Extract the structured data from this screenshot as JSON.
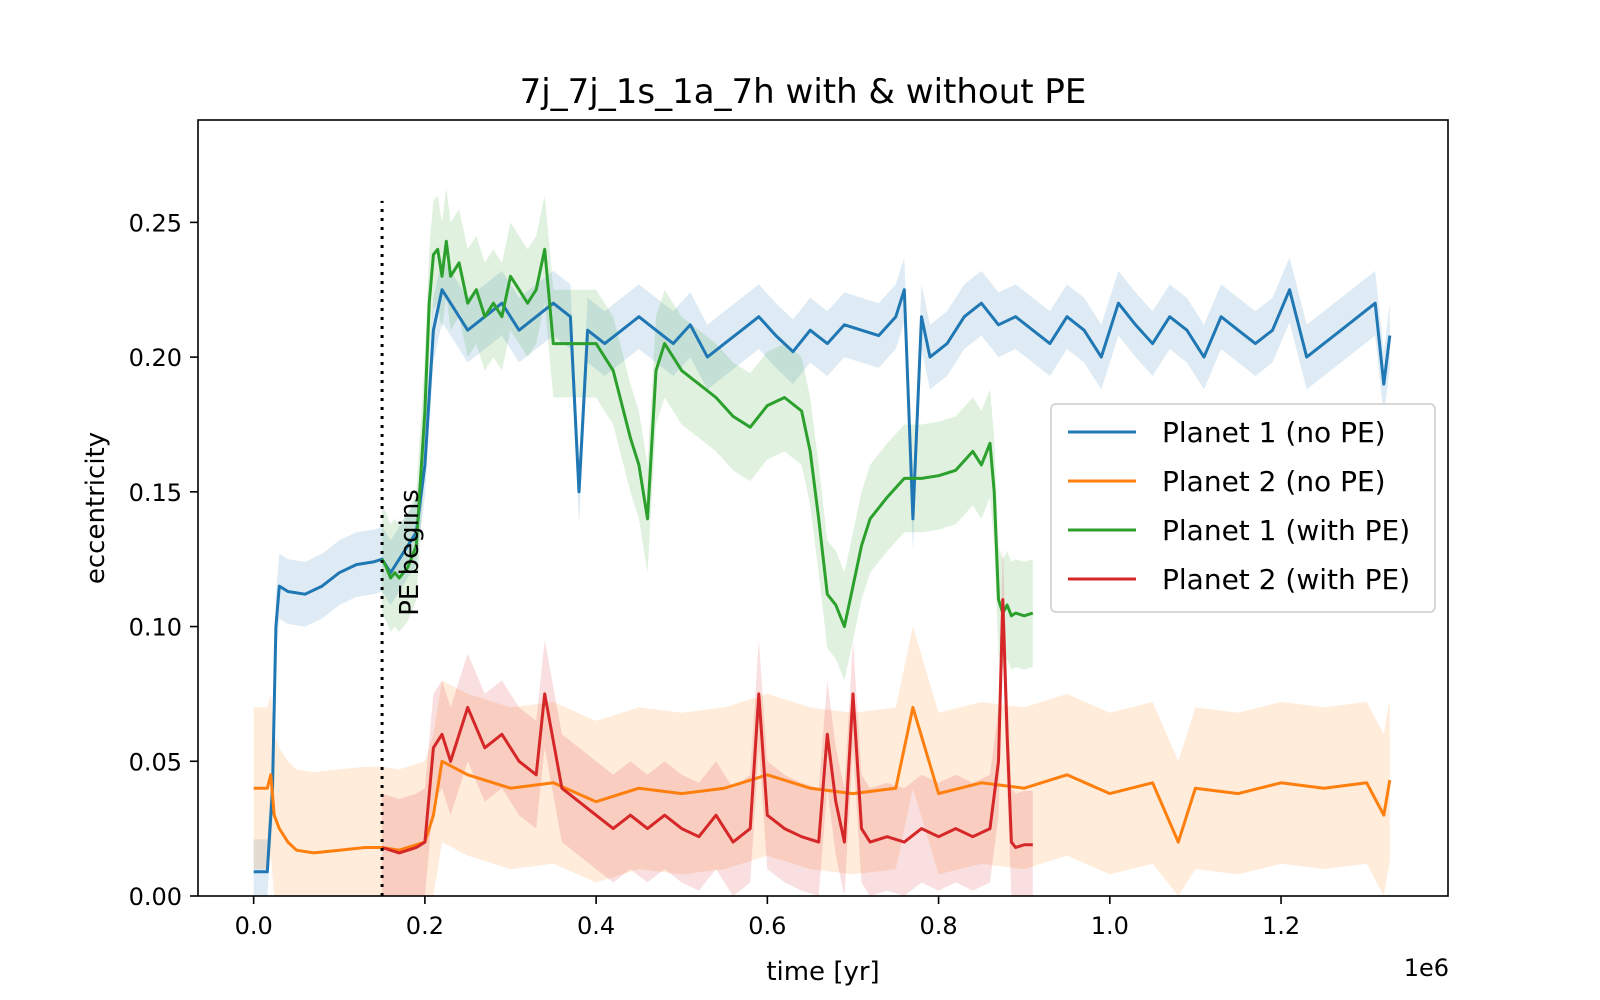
{
  "chart_data": {
    "type": "line",
    "title": "7j_7j_1s_1a_7h with & without PE",
    "xlabel": "time [yr]",
    "ylabel": "eccentricity",
    "x_offset_label": "1e6",
    "xlim": [
      -0.065,
      1.395
    ],
    "ylim": [
      0.0,
      0.288
    ],
    "xticks": [
      0.0,
      0.2,
      0.4,
      0.6,
      0.8,
      1.0,
      1.2
    ],
    "xtick_labels": [
      "0.0",
      "0.2",
      "0.4",
      "0.6",
      "0.8",
      "1.0",
      "1.2"
    ],
    "yticks": [
      0.0,
      0.05,
      0.1,
      0.15,
      0.2,
      0.25
    ],
    "ytick_labels": [
      "0.00",
      "0.05",
      "0.10",
      "0.15",
      "0.20",
      "0.25"
    ],
    "grid": false,
    "legend_position": "center-right",
    "annotation": {
      "text": "PE begins",
      "x": 0.15
    },
    "series": [
      {
        "name": "Planet 1 (no PE)",
        "color": "#1f77b4",
        "band_width": 0.012,
        "x": [
          0.0,
          0.016,
          0.022,
          0.026,
          0.03,
          0.04,
          0.06,
          0.08,
          0.1,
          0.12,
          0.14,
          0.15,
          0.16,
          0.17,
          0.18,
          0.19,
          0.2,
          0.21,
          0.22,
          0.23,
          0.25,
          0.27,
          0.29,
          0.31,
          0.33,
          0.35,
          0.37,
          0.38,
          0.39,
          0.41,
          0.43,
          0.45,
          0.47,
          0.49,
          0.51,
          0.53,
          0.55,
          0.57,
          0.59,
          0.61,
          0.63,
          0.65,
          0.67,
          0.69,
          0.71,
          0.73,
          0.75,
          0.76,
          0.77,
          0.78,
          0.79,
          0.81,
          0.83,
          0.85,
          0.87,
          0.89,
          0.91,
          0.93,
          0.95,
          0.97,
          0.99,
          1.01,
          1.03,
          1.05,
          1.07,
          1.09,
          1.11,
          1.13,
          1.15,
          1.17,
          1.19,
          1.21,
          1.23,
          1.25,
          1.27,
          1.29,
          1.31,
          1.32,
          1.327
        ],
        "y": [
          0.009,
          0.009,
          0.04,
          0.1,
          0.115,
          0.113,
          0.112,
          0.115,
          0.12,
          0.123,
          0.124,
          0.125,
          0.12,
          0.125,
          0.13,
          0.135,
          0.16,
          0.21,
          0.225,
          0.22,
          0.21,
          0.215,
          0.22,
          0.21,
          0.215,
          0.22,
          0.215,
          0.15,
          0.21,
          0.205,
          0.21,
          0.215,
          0.21,
          0.205,
          0.212,
          0.2,
          0.205,
          0.21,
          0.215,
          0.208,
          0.202,
          0.21,
          0.205,
          0.212,
          0.21,
          0.208,
          0.215,
          0.225,
          0.14,
          0.215,
          0.2,
          0.205,
          0.215,
          0.22,
          0.212,
          0.215,
          0.21,
          0.205,
          0.215,
          0.21,
          0.2,
          0.22,
          0.212,
          0.205,
          0.215,
          0.21,
          0.2,
          0.215,
          0.21,
          0.205,
          0.21,
          0.225,
          0.2,
          0.205,
          0.21,
          0.215,
          0.22,
          0.19,
          0.208
        ]
      },
      {
        "name": "Planet 2 (no PE)",
        "color": "#ff7f0e",
        "band_width": 0.03,
        "x": [
          0.0,
          0.016,
          0.02,
          0.024,
          0.03,
          0.04,
          0.05,
          0.07,
          0.1,
          0.13,
          0.15,
          0.17,
          0.19,
          0.2,
          0.21,
          0.22,
          0.25,
          0.3,
          0.35,
          0.4,
          0.45,
          0.5,
          0.55,
          0.6,
          0.65,
          0.7,
          0.75,
          0.77,
          0.8,
          0.85,
          0.9,
          0.95,
          1.0,
          1.05,
          1.08,
          1.1,
          1.15,
          1.2,
          1.25,
          1.3,
          1.32,
          1.327
        ],
        "y": [
          0.04,
          0.04,
          0.045,
          0.03,
          0.025,
          0.02,
          0.017,
          0.016,
          0.017,
          0.018,
          0.018,
          0.017,
          0.019,
          0.02,
          0.03,
          0.05,
          0.045,
          0.04,
          0.042,
          0.035,
          0.04,
          0.038,
          0.04,
          0.045,
          0.04,
          0.038,
          0.04,
          0.07,
          0.038,
          0.042,
          0.04,
          0.045,
          0.038,
          0.042,
          0.02,
          0.04,
          0.038,
          0.042,
          0.04,
          0.042,
          0.03,
          0.043
        ]
      },
      {
        "name": "Planet 1 (with PE)",
        "color": "#2ca02c",
        "band_width": 0.02,
        "x": [
          0.15,
          0.155,
          0.16,
          0.165,
          0.17,
          0.18,
          0.19,
          0.2,
          0.205,
          0.21,
          0.215,
          0.22,
          0.225,
          0.23,
          0.24,
          0.25,
          0.26,
          0.27,
          0.28,
          0.29,
          0.3,
          0.31,
          0.32,
          0.33,
          0.34,
          0.35,
          0.36,
          0.38,
          0.4,
          0.42,
          0.44,
          0.45,
          0.46,
          0.47,
          0.48,
          0.5,
          0.52,
          0.54,
          0.56,
          0.58,
          0.6,
          0.62,
          0.64,
          0.65,
          0.66,
          0.67,
          0.68,
          0.69,
          0.7,
          0.71,
          0.72,
          0.74,
          0.76,
          0.78,
          0.8,
          0.82,
          0.84,
          0.85,
          0.86,
          0.865,
          0.87,
          0.875,
          0.88,
          0.885,
          0.89,
          0.9,
          0.91
        ],
        "y": [
          0.125,
          0.122,
          0.118,
          0.12,
          0.118,
          0.122,
          0.13,
          0.18,
          0.22,
          0.238,
          0.24,
          0.23,
          0.243,
          0.23,
          0.235,
          0.22,
          0.225,
          0.215,
          0.22,
          0.215,
          0.23,
          0.225,
          0.22,
          0.225,
          0.24,
          0.205,
          0.205,
          0.205,
          0.205,
          0.195,
          0.17,
          0.16,
          0.14,
          0.195,
          0.205,
          0.195,
          0.19,
          0.185,
          0.178,
          0.174,
          0.182,
          0.185,
          0.18,
          0.165,
          0.14,
          0.112,
          0.108,
          0.1,
          0.115,
          0.13,
          0.14,
          0.148,
          0.155,
          0.155,
          0.156,
          0.158,
          0.165,
          0.16,
          0.168,
          0.15,
          0.11,
          0.105,
          0.108,
          0.104,
          0.105,
          0.104,
          0.105
        ]
      },
      {
        "name": "Planet 2 (with PE)",
        "color": "#d62728",
        "band_width": 0.02,
        "x": [
          0.15,
          0.16,
          0.17,
          0.18,
          0.19,
          0.2,
          0.21,
          0.22,
          0.23,
          0.25,
          0.27,
          0.29,
          0.31,
          0.33,
          0.34,
          0.36,
          0.38,
          0.4,
          0.42,
          0.44,
          0.46,
          0.48,
          0.5,
          0.52,
          0.54,
          0.56,
          0.58,
          0.59,
          0.6,
          0.62,
          0.64,
          0.66,
          0.67,
          0.68,
          0.69,
          0.7,
          0.71,
          0.72,
          0.74,
          0.76,
          0.78,
          0.8,
          0.82,
          0.84,
          0.86,
          0.87,
          0.875,
          0.88,
          0.885,
          0.89,
          0.9,
          0.91
        ],
        "y": [
          0.018,
          0.017,
          0.016,
          0.017,
          0.018,
          0.02,
          0.055,
          0.06,
          0.05,
          0.07,
          0.055,
          0.06,
          0.05,
          0.045,
          0.075,
          0.04,
          0.035,
          0.03,
          0.025,
          0.03,
          0.025,
          0.03,
          0.025,
          0.022,
          0.03,
          0.02,
          0.025,
          0.075,
          0.03,
          0.025,
          0.022,
          0.02,
          0.06,
          0.035,
          0.02,
          0.075,
          0.025,
          0.02,
          0.022,
          0.02,
          0.025,
          0.022,
          0.025,
          0.022,
          0.025,
          0.05,
          0.11,
          0.06,
          0.02,
          0.018,
          0.019,
          0.019
        ]
      }
    ]
  }
}
